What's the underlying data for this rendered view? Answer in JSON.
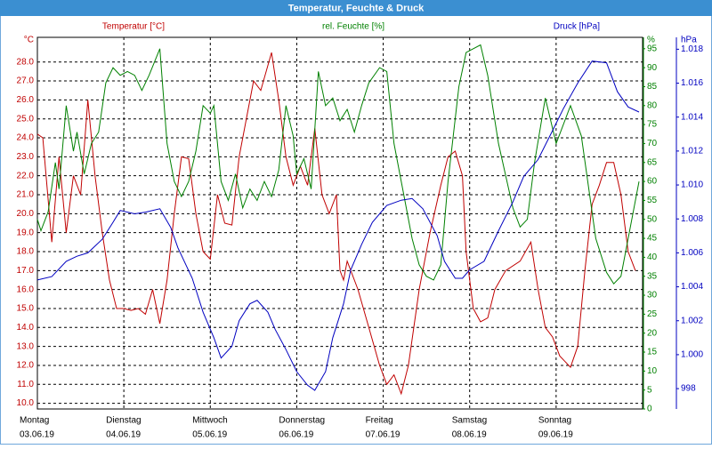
{
  "chart_data": {
    "type": "line",
    "title": "Temperatur, Feuchte & Druck",
    "xlim": [
      0,
      168
    ],
    "xticks": [
      {
        "value": 0,
        "label": "Montag"
      },
      {
        "value": 24,
        "label": "Dienstag"
      },
      {
        "value": 48,
        "label": "Mittwoch"
      },
      {
        "value": 72,
        "label": "Donnerstag"
      },
      {
        "value": 96,
        "label": "Freitag"
      },
      {
        "value": 120,
        "label": "Samstag"
      },
      {
        "value": 144,
        "label": "Sonntag"
      }
    ],
    "xtick_dates": [
      "03.06.19",
      "04.06.19",
      "05.06.19",
      "06.06.19",
      "07.06.19",
      "08.06.19",
      "09.06.19"
    ],
    "y_unit": "°C",
    "y2_unit": "%",
    "y3_unit": "hPa",
    "ylim": [
      9.7,
      29.3
    ],
    "yticks": [
      {
        "value": 10,
        "label": "10.0"
      },
      {
        "value": 11,
        "label": "11.0"
      },
      {
        "value": 12,
        "label": "12.0"
      },
      {
        "value": 13,
        "label": "13.0"
      },
      {
        "value": 14,
        "label": "14.0"
      },
      {
        "value": 15,
        "label": "15.0"
      },
      {
        "value": 16,
        "label": "16.0"
      },
      {
        "value": 17,
        "label": "17.0"
      },
      {
        "value": 18,
        "label": "18.0"
      },
      {
        "value": 19,
        "label": "19.0"
      },
      {
        "value": 20,
        "label": "20.0"
      },
      {
        "value": 21,
        "label": "21.0"
      },
      {
        "value": 22,
        "label": "22.0"
      },
      {
        "value": 23,
        "label": "23.0"
      },
      {
        "value": 24,
        "label": "24.0"
      },
      {
        "value": 25,
        "label": "25.0"
      },
      {
        "value": 26,
        "label": "26.0"
      },
      {
        "value": 27,
        "label": "27.0"
      },
      {
        "value": 28,
        "label": "28.0"
      }
    ],
    "y2lim": [
      0,
      98
    ],
    "y2ticks": [
      0,
      5,
      10,
      15,
      20,
      25,
      30,
      35,
      40,
      45,
      50,
      55,
      60,
      65,
      70,
      75,
      80,
      85,
      90,
      95
    ],
    "y3lim": [
      996.8,
      1018.7
    ],
    "y3ticks": [
      998,
      {
        "value": 1000,
        "label": "1.000"
      },
      {
        "value": 1002,
        "label": "1.002"
      },
      {
        "value": 1004,
        "label": "1.004"
      },
      {
        "value": 1006,
        "label": "1.006"
      },
      {
        "value": 1008,
        "label": "1.008"
      },
      {
        "value": 1010,
        "label": "1.010"
      },
      {
        "value": 1012,
        "label": "1.012"
      },
      {
        "value": 1014,
        "label": "1.014"
      },
      {
        "value": 1016,
        "label": "1.016"
      },
      {
        "value": 1018,
        "label": "1.018"
      }
    ],
    "grid": true,
    "series": [
      {
        "name": "Temperatur [°C]",
        "color": "#c00000",
        "axis": "y",
        "x": [
          0,
          1.5,
          4,
          6,
          8,
          10,
          12,
          14,
          16,
          18,
          20,
          22,
          24,
          26,
          28,
          30,
          32,
          34,
          36,
          38,
          40,
          42,
          44,
          46,
          48,
          50,
          52,
          54,
          56,
          58,
          60,
          62,
          65,
          67,
          69,
          71,
          73,
          75,
          77,
          79,
          81,
          83,
          84,
          85,
          86,
          89,
          92,
          95,
          97,
          99,
          101,
          103,
          106,
          109,
          112,
          114,
          116,
          118,
          119,
          121,
          123,
          125,
          127,
          130,
          134,
          137,
          139,
          141,
          143,
          145,
          148,
          150,
          152,
          154,
          156,
          158,
          160,
          162,
          164,
          166
        ],
        "values": [
          24.2,
          24,
          18.5,
          23,
          19,
          22,
          21,
          26,
          22,
          19,
          16.5,
          15,
          15,
          14.9,
          15,
          14.7,
          16,
          14.2,
          16.5,
          20,
          23,
          22.9,
          20,
          18,
          17.6,
          21,
          19.5,
          19.4,
          23,
          25,
          27,
          26.5,
          28.5,
          26,
          23,
          21.5,
          22.5,
          21.5,
          24.5,
          21,
          20,
          21,
          17,
          16.5,
          17.5,
          16,
          14,
          12,
          11,
          11.5,
          10.5,
          12,
          16,
          19,
          21.5,
          23,
          23.3,
          22,
          18,
          15,
          14.3,
          14.5,
          16,
          17,
          17.5,
          18.5,
          16,
          14,
          13.5,
          12.5,
          11.9,
          13,
          17,
          20.5,
          21.5,
          22.7,
          22.7,
          21,
          18,
          17
        ]
      },
      {
        "name": "rel. Feuchte [%]",
        "color": "#008000",
        "axis": "y2",
        "x": [
          0,
          1,
          3,
          5,
          6,
          8,
          10,
          11,
          13,
          15,
          17,
          19,
          21,
          23,
          25,
          27,
          29,
          31,
          34,
          36,
          38,
          40,
          42,
          44,
          46,
          48,
          49,
          51,
          53,
          55,
          57,
          59,
          61,
          63,
          65,
          67,
          69,
          71,
          72,
          74,
          76,
          78,
          80,
          82,
          84,
          86,
          88,
          90,
          92,
          95,
          97,
          99,
          102,
          104,
          106,
          108,
          110,
          112,
          114,
          117,
          119,
          123,
          125,
          128,
          132,
          134,
          136,
          138,
          141,
          144,
          146,
          148,
          151,
          155,
          158,
          160,
          162,
          165,
          167
        ],
        "values": [
          50,
          47,
          52,
          65,
          58,
          80,
          68,
          73,
          62,
          70,
          73,
          86,
          90,
          88,
          89,
          88,
          84,
          88,
          95,
          70,
          60,
          56,
          60,
          68,
          80,
          78,
          80,
          60,
          55,
          62,
          53,
          58,
          55,
          60,
          56,
          63,
          80,
          72,
          62,
          66,
          58,
          89,
          80,
          82,
          76,
          79,
          73,
          80,
          86,
          90,
          89,
          70,
          55,
          45,
          38,
          35,
          34,
          38,
          60,
          85,
          94,
          96,
          88,
          70,
          53,
          48,
          50,
          65,
          82,
          70,
          75,
          80,
          72,
          45,
          36,
          33,
          35,
          50,
          60
        ]
      },
      {
        "name": "Druck [hPa]",
        "color": "#0000c0",
        "axis": "y3",
        "x": [
          0,
          4,
          8,
          11,
          14,
          18,
          21,
          23,
          27,
          30,
          34,
          37,
          39,
          43,
          46,
          49,
          51,
          54,
          56,
          59,
          61,
          64,
          66,
          69,
          72,
          75,
          77,
          80,
          82,
          85,
          87,
          90,
          93,
          97,
          101,
          104,
          107,
          111,
          113,
          116,
          118,
          120,
          124,
          128,
          132,
          135,
          139,
          143,
          146,
          150,
          154,
          158,
          161,
          164,
          167
        ],
        "values": [
          1004.4,
          1004.6,
          1005.5,
          1005.8,
          1006,
          1006.8,
          1007.8,
          1008.5,
          1008.3,
          1008.4,
          1008.6,
          1007.5,
          1006.3,
          1004.5,
          1002.5,
          1001,
          999.8,
          1000.5,
          1002,
          1003,
          1003.2,
          1002.5,
          1001.5,
          1000.3,
          999,
          998.2,
          997.9,
          999,
          1001,
          1003,
          1005,
          1006.5,
          1007.8,
          1008.8,
          1009.1,
          1009.2,
          1008.6,
          1007,
          1005.5,
          1004.5,
          1004.5,
          1005,
          1005.5,
          1007.3,
          1009,
          1010.5,
          1011.5,
          1013.2,
          1014.5,
          1016,
          1017.3,
          1017.2,
          1015.5,
          1014.6,
          1014.3
        ]
      }
    ]
  }
}
